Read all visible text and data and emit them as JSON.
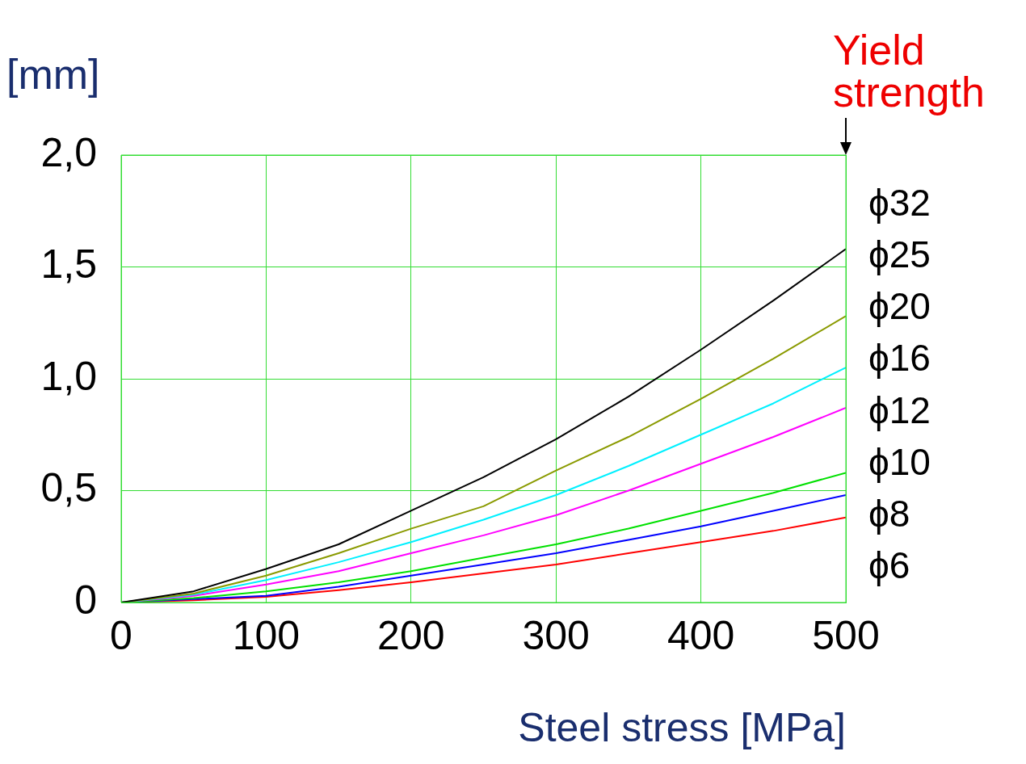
{
  "chart_data": {
    "type": "line",
    "xlabel": "Steel stress [MPa]",
    "ylabel": "[mm]",
    "x": [
      0,
      50,
      100,
      150,
      200,
      250,
      300,
      350,
      400,
      450,
      500
    ],
    "series": [
      {
        "color": "#000000",
        "values": [
          0,
          0.05,
          0.15,
          0.26,
          0.41,
          0.56,
          0.73,
          0.92,
          1.13,
          1.35,
          1.58
        ]
      },
      {
        "color": "#8a9a00",
        "values": [
          0,
          0.04,
          0.12,
          0.22,
          0.33,
          0.43,
          0.59,
          0.74,
          0.91,
          1.09,
          1.28
        ]
      },
      {
        "color": "#00f0ff",
        "values": [
          0,
          0.035,
          0.1,
          0.18,
          0.27,
          0.37,
          0.48,
          0.61,
          0.75,
          0.89,
          1.05
        ]
      },
      {
        "color": "#ff00ff",
        "values": [
          0,
          0.03,
          0.08,
          0.14,
          0.22,
          0.3,
          0.39,
          0.5,
          0.62,
          0.74,
          0.87
        ]
      },
      {
        "color": "#00e000",
        "values": [
          0,
          0.02,
          0.05,
          0.09,
          0.14,
          0.2,
          0.26,
          0.33,
          0.41,
          0.49,
          0.58
        ]
      },
      {
        "color": "#0000ff",
        "values": [
          0,
          0.015,
          0.03,
          0.07,
          0.12,
          0.17,
          0.22,
          0.28,
          0.34,
          0.41,
          0.48
        ]
      },
      {
        "color": "#ff0000",
        "values": [
          0,
          0.01,
          0.025,
          0.055,
          0.09,
          0.13,
          0.17,
          0.22,
          0.27,
          0.32,
          0.38
        ]
      }
    ],
    "xlim": [
      0,
      500
    ],
    "xticks": [
      0,
      100,
      200,
      300,
      400,
      500
    ],
    "ylim": [
      0,
      2
    ],
    "yticks": [
      {
        "value": 0,
        "label": "0"
      },
      {
        "value": 0.5,
        "label": "0,5"
      },
      {
        "value": 1,
        "label": "1,0"
      },
      {
        "value": 1.5,
        "label": "1,5"
      },
      {
        "value": 2,
        "label": "2,0"
      }
    ],
    "grid": true,
    "legend": false,
    "marker": "none",
    "line_style": "solid",
    "annotations": [
      "Yield strength",
      "ϕ32",
      "ϕ25",
      "ϕ20",
      "ϕ16",
      "ϕ12",
      "ϕ10",
      "ϕ8",
      "ϕ6"
    ]
  }
}
